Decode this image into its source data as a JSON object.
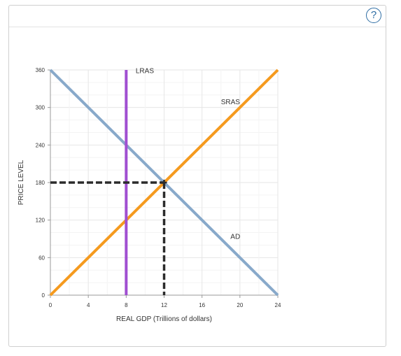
{
  "header": {
    "help_label": "?"
  },
  "chart_data": {
    "type": "line",
    "title": "",
    "xlabel": "REAL GDP (Trillions of dollars)",
    "ylabel": "PRICE LEVEL",
    "xlim": [
      0,
      24
    ],
    "ylim": [
      0,
      360
    ],
    "xticks": [
      0,
      4,
      8,
      12,
      16,
      20,
      24
    ],
    "yticks": [
      0,
      60,
      120,
      180,
      240,
      300,
      360
    ],
    "grid": true,
    "series": [
      {
        "name": "AD",
        "color": "#88a9ca",
        "x": [
          0,
          24
        ],
        "y": [
          360,
          0
        ],
        "label_at": [
          19,
          90
        ]
      },
      {
        "name": "SRAS",
        "color": "#f59a1e",
        "x": [
          0,
          24
        ],
        "y": [
          0,
          360
        ],
        "label_at": [
          18,
          305
        ]
      },
      {
        "name": "LRAS",
        "color": "#a04fd1",
        "x": [
          8,
          8
        ],
        "y": [
          0,
          360
        ],
        "label_at": [
          9,
          355
        ]
      }
    ],
    "equilibrium": {
      "x": 12,
      "y": 180,
      "color": "#2b2b2b"
    }
  }
}
